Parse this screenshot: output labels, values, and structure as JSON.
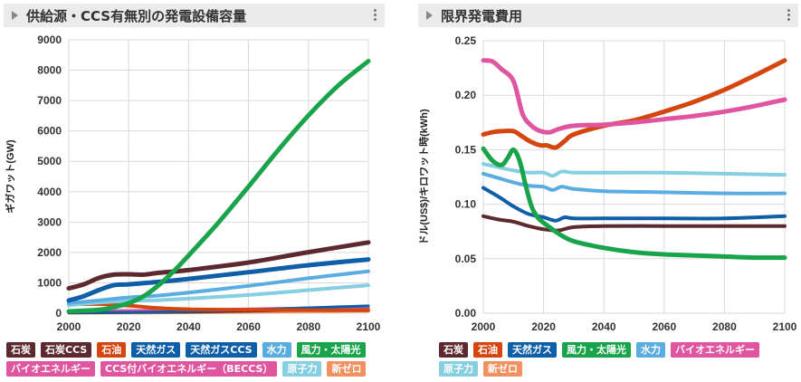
{
  "panels": {
    "left_title": "供給源・CCS有無別の発電設備容量",
    "right_title": "限界発電費用"
  },
  "chart_data": [
    {
      "type": "line",
      "title": "供給源・CCS有無別の発電設備容量",
      "xlabel": "",
      "ylabel": "ギガワット(GW)",
      "xlim": [
        2000,
        2100
      ],
      "ylim": [
        0,
        9000
      ],
      "xticks": [
        "2000",
        "2020",
        "2040",
        "2060",
        "2080",
        "2100"
      ],
      "yticks": [
        "0",
        "1000",
        "2000",
        "3000",
        "4000",
        "5000",
        "6000",
        "7000",
        "8000",
        "9000"
      ],
      "legend": [
        {
          "label": "石炭",
          "color": "#5c2a2e"
        },
        {
          "label": "石炭CCS",
          "color": "#5c2a2e"
        },
        {
          "label": "石油",
          "color": "#d5460f"
        },
        {
          "label": "天然ガス",
          "color": "#0f5ea8"
        },
        {
          "label": "天然ガスCCS",
          "color": "#0f5ea8"
        },
        {
          "label": "水力",
          "color": "#5aade0"
        },
        {
          "label": "風力・太陽光",
          "color": "#19a34a"
        },
        {
          "label": "バイオエネルギー",
          "color": "#e0559f"
        },
        {
          "label": "CCS付バイオエネルギー（BECCS）",
          "color": "#e0559f"
        },
        {
          "label": "原子力",
          "color": "#85cfe0"
        },
        {
          "label": "新ゼロ",
          "color": "#f39060"
        }
      ],
      "series": [
        {
          "name": "新ゼロ",
          "color": "#f39060",
          "width": 3,
          "x": [
            2000,
            2020,
            2040,
            2060,
            2080,
            2100
          ],
          "y": [
            5,
            10,
            15,
            30,
            50,
            70
          ]
        },
        {
          "name": "石炭CCS",
          "color": "#5c2a2e",
          "width": 3,
          "x": [
            2000,
            2020,
            2040,
            2060,
            2080,
            2100
          ],
          "y": [
            10,
            20,
            40,
            70,
            100,
            130
          ]
        },
        {
          "name": "バイオエネルギー",
          "color": "#e0559f",
          "width": 3,
          "x": [
            2000,
            2010,
            2020,
            2040,
            2060,
            2080,
            2100
          ],
          "y": [
            60,
            80,
            90,
            110,
            140,
            170,
            200
          ]
        },
        {
          "name": "天然ガスCCS",
          "color": "#0f5ea8",
          "width": 3,
          "x": [
            2000,
            2020,
            2040,
            2060,
            2080,
            2100
          ],
          "y": [
            20,
            30,
            60,
            110,
            180,
            240
          ]
        },
        {
          "name": "石油",
          "color": "#d5460f",
          "width": 4,
          "x": [
            2000,
            2010,
            2020,
            2030,
            2040,
            2060,
            2080,
            2100
          ],
          "y": [
            290,
            300,
            250,
            170,
            130,
            110,
            100,
            95
          ]
        },
        {
          "name": "原子力",
          "color": "#85cfe0",
          "width": 4,
          "x": [
            2000,
            2010,
            2020,
            2030,
            2040,
            2060,
            2080,
            2100
          ],
          "y": [
            260,
            350,
            400,
            430,
            480,
            600,
            760,
            920
          ]
        },
        {
          "name": "水力",
          "color": "#5aade0",
          "width": 4,
          "x": [
            2000,
            2010,
            2020,
            2030,
            2040,
            2060,
            2080,
            2100
          ],
          "y": [
            330,
            420,
            520,
            580,
            680,
            900,
            1150,
            1380
          ]
        },
        {
          "name": "天然ガス",
          "color": "#0f5ea8",
          "width": 5,
          "x": [
            2000,
            2005,
            2010,
            2015,
            2020,
            2030,
            2040,
            2060,
            2080,
            2100
          ],
          "y": [
            420,
            560,
            760,
            920,
            950,
            1030,
            1130,
            1350,
            1580,
            1770
          ]
        },
        {
          "name": "石炭",
          "color": "#5c2a2e",
          "width": 5,
          "x": [
            2000,
            2005,
            2010,
            2015,
            2020,
            2025,
            2030,
            2040,
            2060,
            2080,
            2100
          ],
          "y": [
            820,
            950,
            1160,
            1270,
            1280,
            1270,
            1330,
            1420,
            1670,
            2010,
            2330
          ]
        },
        {
          "name": "風力・太陽光",
          "color": "#19a34a",
          "width": 5,
          "x": [
            2000,
            2010,
            2015,
            2020,
            2025,
            2030,
            2035,
            2040,
            2050,
            2060,
            2070,
            2080,
            2090,
            2100
          ],
          "y": [
            60,
            110,
            200,
            330,
            560,
            920,
            1380,
            1900,
            2990,
            4170,
            5380,
            6510,
            7500,
            8300
          ]
        }
      ]
    },
    {
      "type": "line",
      "title": "限界発電費用",
      "xlabel": "",
      "ylabel": "ドル(US$)/キロワット時(kWh)",
      "xlim": [
        2000,
        2100
      ],
      "ylim": [
        0,
        0.25
      ],
      "xticks": [
        "2000",
        "2020",
        "2040",
        "2060",
        "2080",
        "2100"
      ],
      "yticks": [
        "0.00",
        "0.05",
        "0.10",
        "0.15",
        "0.20",
        "0.25"
      ],
      "legend": [
        {
          "label": "石炭",
          "color": "#5c2a2e"
        },
        {
          "label": "石油",
          "color": "#d5460f"
        },
        {
          "label": "天然ガス",
          "color": "#0f5ea8"
        },
        {
          "label": "風力・太陽光",
          "color": "#19a34a"
        },
        {
          "label": "水力",
          "color": "#5aade0"
        },
        {
          "label": "バイオエネルギー",
          "color": "#e0559f"
        },
        {
          "label": "原子力",
          "color": "#85cfe0"
        },
        {
          "label": "新ゼロ",
          "color": "#f39060"
        }
      ],
      "series": [
        {
          "name": "原子力",
          "color": "#85cfe0",
          "width": 4,
          "x": [
            2000,
            2005,
            2010,
            2015,
            2020,
            2023,
            2026,
            2030,
            2040,
            2060,
            2080,
            2100
          ],
          "y": [
            0.137,
            0.134,
            0.131,
            0.129,
            0.129,
            0.126,
            0.13,
            0.129,
            0.129,
            0.129,
            0.128,
            0.127
          ]
        },
        {
          "name": "水力",
          "color": "#5aade0",
          "width": 4,
          "x": [
            2000,
            2005,
            2010,
            2015,
            2020,
            2023,
            2026,
            2030,
            2040,
            2060,
            2080,
            2100
          ],
          "y": [
            0.128,
            0.124,
            0.12,
            0.117,
            0.116,
            0.113,
            0.116,
            0.114,
            0.112,
            0.111,
            0.11,
            0.11
          ]
        },
        {
          "name": "天然ガス",
          "color": "#0f5ea8",
          "width": 4,
          "x": [
            2000,
            2005,
            2010,
            2015,
            2020,
            2024,
            2027,
            2030,
            2040,
            2060,
            2080,
            2100
          ],
          "y": [
            0.115,
            0.107,
            0.098,
            0.091,
            0.088,
            0.085,
            0.088,
            0.087,
            0.087,
            0.087,
            0.087,
            0.089
          ]
        },
        {
          "name": "石炭",
          "color": "#5c2a2e",
          "width": 4,
          "x": [
            2000,
            2005,
            2010,
            2015,
            2020,
            2025,
            2030,
            2040,
            2060,
            2080,
            2100
          ],
          "y": [
            0.089,
            0.086,
            0.084,
            0.08,
            0.077,
            0.076,
            0.079,
            0.08,
            0.08,
            0.08,
            0.08
          ]
        },
        {
          "name": "風力・太陽光",
          "color": "#19a34a",
          "width": 5,
          "x": [
            2000,
            2003,
            2006,
            2008,
            2010,
            2012,
            2014,
            2016,
            2018,
            2020,
            2025,
            2030,
            2040,
            2050,
            2060,
            2070,
            2080,
            2090,
            2100
          ],
          "y": [
            0.151,
            0.14,
            0.136,
            0.142,
            0.15,
            0.14,
            0.118,
            0.098,
            0.088,
            0.083,
            0.073,
            0.066,
            0.06,
            0.056,
            0.054,
            0.053,
            0.052,
            0.051,
            0.051
          ]
        },
        {
          "name": "石油",
          "color": "#d5460f",
          "width": 5,
          "x": [
            2000,
            2003,
            2006,
            2010,
            2013,
            2016,
            2019,
            2021,
            2024,
            2027,
            2030,
            2040,
            2050,
            2060,
            2070,
            2080,
            2090,
            2100
          ],
          "y": [
            0.164,
            0.166,
            0.167,
            0.167,
            0.162,
            0.157,
            0.154,
            0.154,
            0.152,
            0.158,
            0.164,
            0.172,
            0.177,
            0.185,
            0.194,
            0.205,
            0.218,
            0.232
          ]
        },
        {
          "name": "バイオエネルギー",
          "color": "#e0559f",
          "width": 5,
          "x": [
            2000,
            2003,
            2006,
            2010,
            2013,
            2016,
            2019,
            2022,
            2025,
            2030,
            2040,
            2050,
            2060,
            2070,
            2080,
            2090,
            2100
          ],
          "y": [
            0.232,
            0.231,
            0.224,
            0.213,
            0.183,
            0.172,
            0.167,
            0.166,
            0.169,
            0.172,
            0.173,
            0.175,
            0.178,
            0.181,
            0.185,
            0.19,
            0.196
          ]
        }
      ]
    }
  ]
}
